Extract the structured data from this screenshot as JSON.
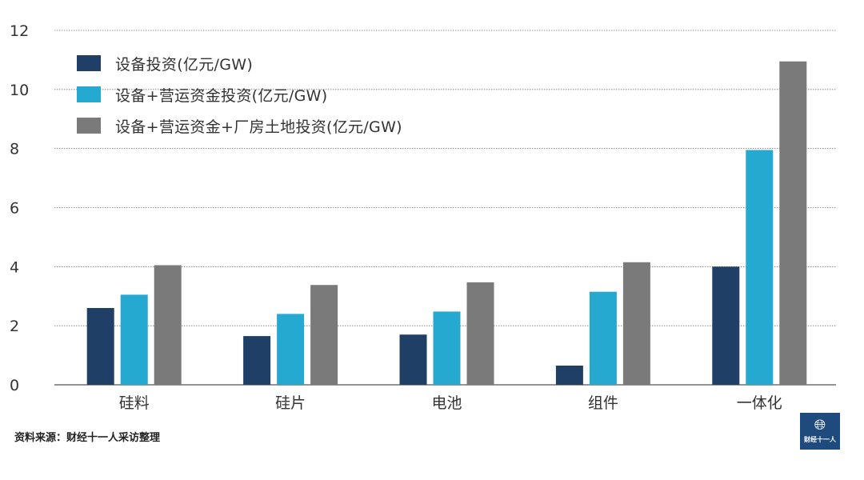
{
  "chart_data": {
    "type": "bar",
    "categories": [
      "硅料",
      "硅片",
      "电池",
      "组件",
      "一体化"
    ],
    "series": [
      {
        "name": "设备投资(亿元/GW)",
        "values": [
          2.6,
          1.65,
          1.7,
          0.65,
          4.0
        ],
        "color": "#1f3f66"
      },
      {
        "name": "设备+营运资金投资(亿元/GW)",
        "values": [
          3.05,
          2.4,
          2.48,
          3.15,
          7.95
        ],
        "color": "#26a9d1"
      },
      {
        "name": "设备+营运资金+厂房土地投资(亿元/GW)",
        "values": [
          4.05,
          3.38,
          3.47,
          4.15,
          10.95
        ],
        "color": "#7a7a7a"
      }
    ],
    "yticks": [
      0,
      2,
      4,
      6,
      8,
      10,
      12
    ],
    "ylim": [
      0,
      12
    ],
    "grid": true,
    "legend_position": "top-left"
  },
  "footer": {
    "source": "资料来源：财经十一人采访整理",
    "logo_icon": "globe-icon",
    "logo_text": "财经十一人"
  }
}
